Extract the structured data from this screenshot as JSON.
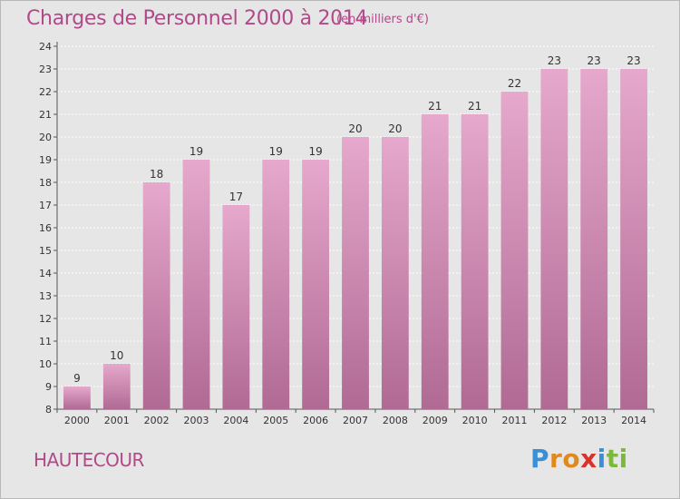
{
  "header": {
    "title": "Charges de Personnel 2000 à 2014",
    "subtitle": "(en milliers d'€)"
  },
  "footer": {
    "commune": "HAUTECOUR",
    "brand_letters": [
      "P",
      "r",
      "o",
      "x",
      "i",
      "t",
      "i"
    ],
    "brand_colors": [
      "#3a8fd6",
      "#e08a1e",
      "#e08a1e",
      "#d9312b",
      "#3a8fd6",
      "#7cb83a",
      "#7cb83a"
    ]
  },
  "chart_data": {
    "type": "bar",
    "categories": [
      "2000",
      "2001",
      "2002",
      "2003",
      "2004",
      "2005",
      "2006",
      "2007",
      "2008",
      "2009",
      "2010",
      "2011",
      "2012",
      "2013",
      "2014"
    ],
    "values": [
      9,
      10,
      18,
      19,
      17,
      19,
      19,
      20,
      20,
      21,
      21,
      22,
      23,
      23,
      23
    ],
    "data_labels": [
      "9",
      "10",
      "18",
      "19",
      "17",
      "19",
      "19",
      "20",
      "20",
      "21",
      "21",
      "22",
      "23",
      "23",
      "23"
    ],
    "title": "Charges de Personnel 2000 à 2014",
    "xlabel": "",
    "ylabel": "",
    "ylim": [
      8,
      24
    ],
    "yticks": [
      "8",
      "9",
      "10",
      "11",
      "12",
      "13",
      "14",
      "15",
      "16",
      "17",
      "18",
      "19",
      "20",
      "21",
      "22",
      "23",
      "24"
    ],
    "grid": true,
    "bar_color_top": "#e6a8cc",
    "bar_color_bottom": "#b06a94",
    "grid_color": "#ffffff",
    "background": "#e6e6e6"
  }
}
